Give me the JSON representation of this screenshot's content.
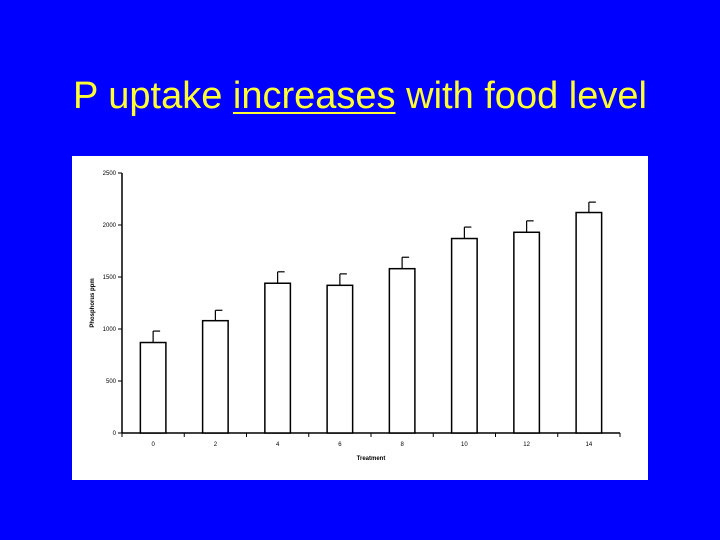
{
  "slide": {
    "title_pre": "P uptake ",
    "title_underlined": "increases",
    "title_post": " with food level"
  },
  "colors": {
    "background": "#0000ff",
    "title": "#ffff33",
    "panel": "#ffffff",
    "bar_fill": "#ffffff",
    "bar_stroke": "#000000"
  },
  "chart_data": {
    "type": "bar",
    "categories": [
      "0",
      "2",
      "4",
      "6",
      "8",
      "10",
      "12",
      "14"
    ],
    "values": [
      870,
      1080,
      1440,
      1420,
      1580,
      1870,
      1930,
      2120
    ],
    "errors": [
      110,
      100,
      110,
      110,
      110,
      110,
      110,
      100
    ],
    "xlabel": "Treatment",
    "ylabel": "Phosphorus ppm",
    "ylim": [
      0,
      2500
    ],
    "yticks": [
      0,
      500,
      1000,
      1500,
      2000,
      2500
    ],
    "grid": false,
    "legend": "none"
  }
}
